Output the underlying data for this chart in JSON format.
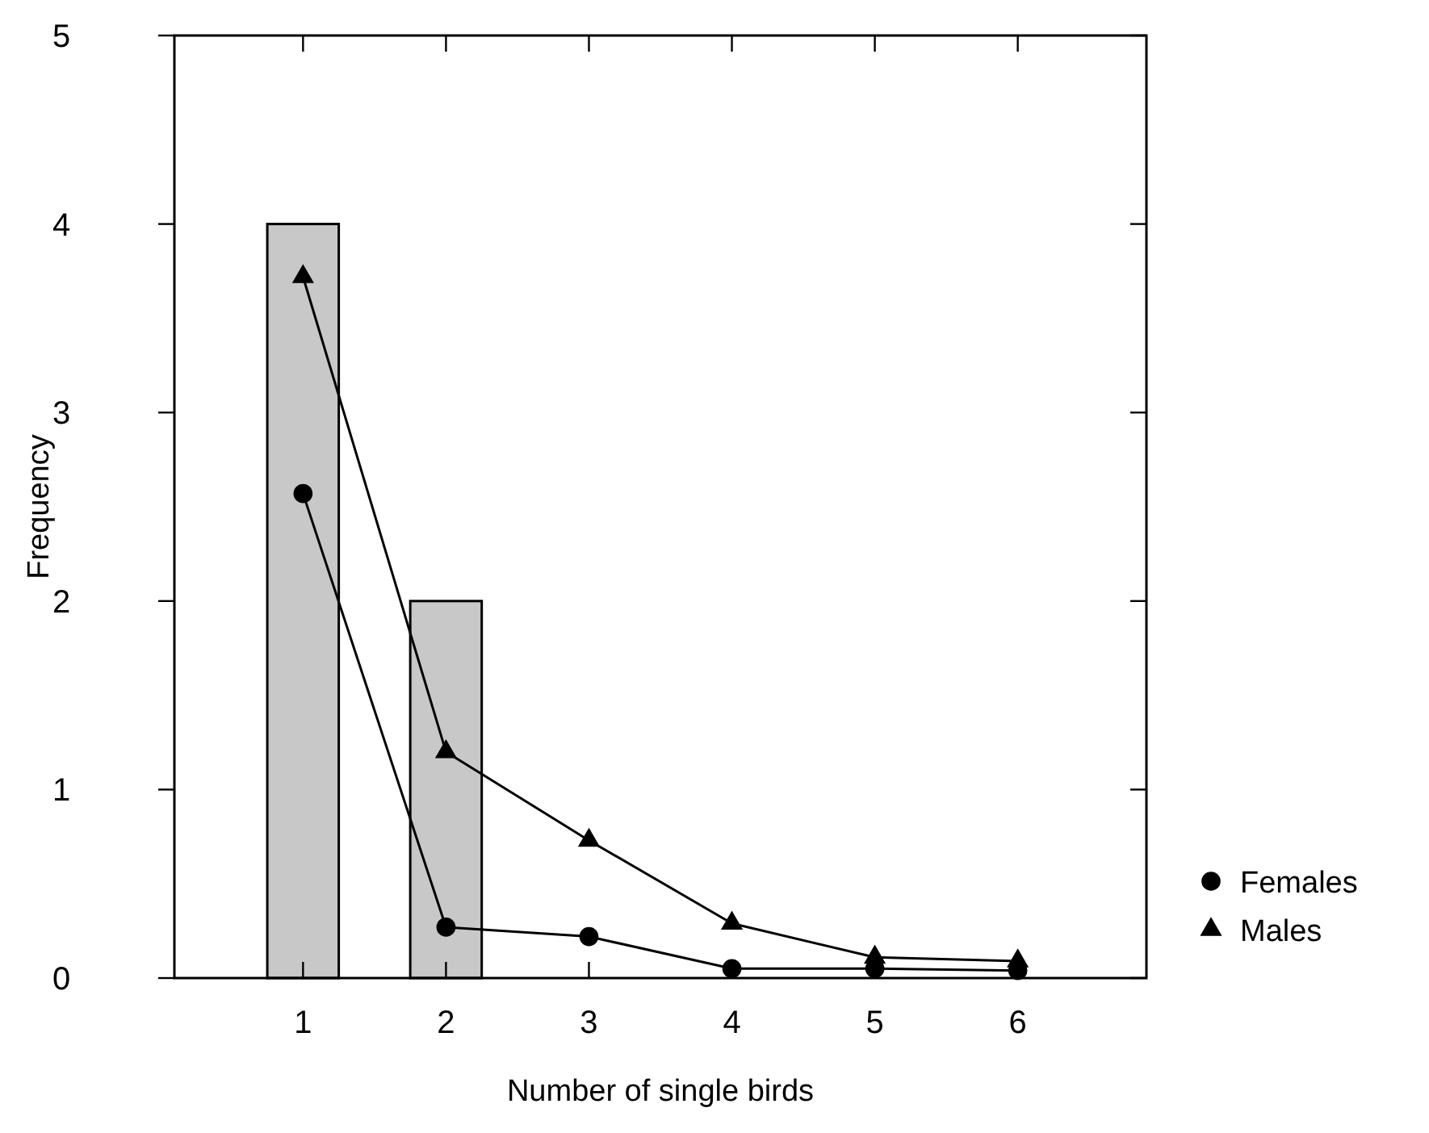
{
  "chart_data": {
    "type": "line",
    "xlabel": "Number of single birds",
    "ylabel": "Frequency",
    "xlim": [
      0.1,
      6.9
    ],
    "xticks": [
      1,
      2,
      3,
      4,
      5,
      6
    ],
    "ylim": [
      0,
      5
    ],
    "yticks": [
      0,
      1,
      2,
      3,
      4,
      5
    ],
    "grid": false,
    "legend": "right",
    "series": [
      {
        "type": "bar",
        "color": "#c8c8c8",
        "x": [
          1,
          2
        ],
        "values": [
          4,
          2
        ]
      },
      {
        "name": "Females",
        "color": "#000000",
        "marker": "circle",
        "x": [
          1,
          2,
          3,
          4,
          5,
          6
        ],
        "values": [
          2.57,
          0.27,
          0.22,
          0.05,
          0.05,
          0.04
        ]
      },
      {
        "name": "Males",
        "color": "#000000",
        "marker": "triangle",
        "x": [
          1,
          2,
          3,
          4,
          5,
          6
        ],
        "values": [
          3.72,
          1.2,
          0.73,
          0.29,
          0.11,
          0.09
        ]
      }
    ]
  }
}
